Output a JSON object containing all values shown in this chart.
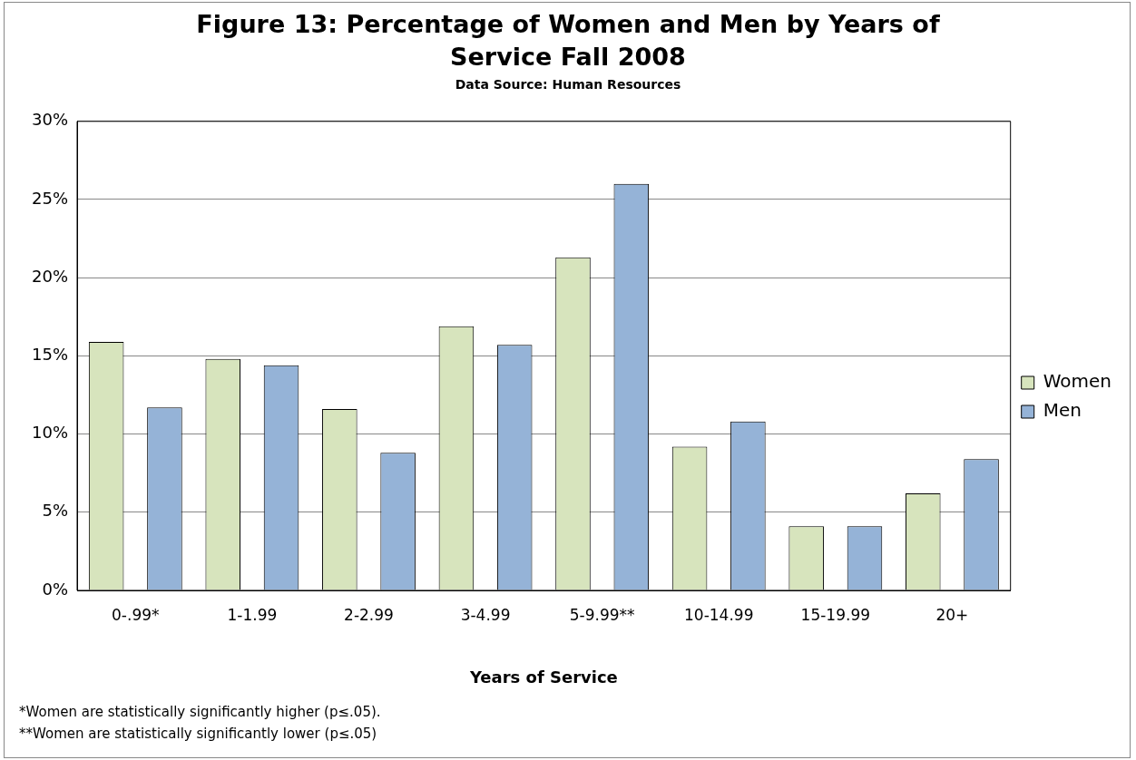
{
  "chart_data": {
    "type": "bar",
    "title": "Figure 13: Percentage of Women and Men by Years of Service Fall 2008",
    "subtitle": "Data Source: Human Resources",
    "xlabel": "Years of Service",
    "categories": [
      "0-.99*",
      "1-1.99",
      "2-2.99",
      "3-4.99",
      "5-9.99**",
      "10-14.99",
      "15-19.99",
      "20+"
    ],
    "series": [
      {
        "name": "Women",
        "color": "#d7e4bd",
        "values": [
          15.9,
          14.8,
          11.6,
          16.9,
          21.3,
          9.2,
          4.1,
          6.2
        ]
      },
      {
        "name": "Men",
        "color": "#95b3d7",
        "values": [
          11.7,
          14.4,
          8.8,
          15.7,
          26.0,
          10.8,
          4.1,
          8.4
        ]
      }
    ],
    "ylim": [
      0,
      30
    ],
    "yticks": [
      {
        "value": 0,
        "label": "0%"
      },
      {
        "value": 5,
        "label": "5%"
      },
      {
        "value": 10,
        "label": "10%"
      },
      {
        "value": 15,
        "label": "15%"
      },
      {
        "value": 20,
        "label": "20%"
      },
      {
        "value": 25,
        "label": "25%"
      },
      {
        "value": 30,
        "label": "30%"
      }
    ],
    "grid": "y",
    "legend": "right",
    "annotations": [
      "*Women are statistically significantly higher (p≤.05).",
      "**Women are statistically significantly lower (p≤.05)"
    ]
  }
}
